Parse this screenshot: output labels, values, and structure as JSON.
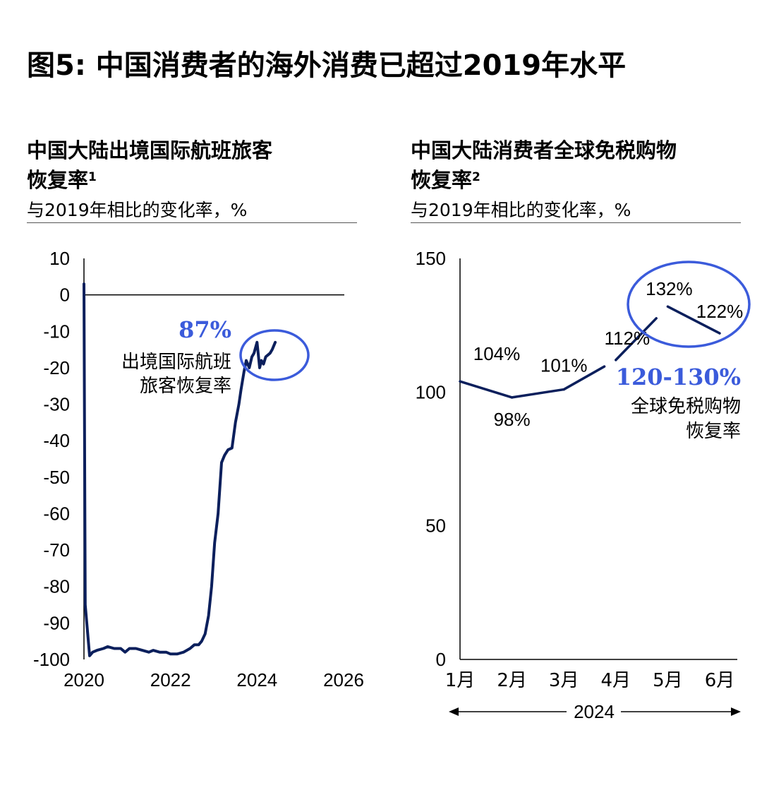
{
  "title": "图5: 中国消费者的海外消费已超过2019年水平",
  "colors": {
    "line": "#0b1f5c",
    "accent": "#3b5bdb",
    "axis": "#000000"
  },
  "chart_data": [
    {
      "type": "line",
      "title": "中国大陆出境国际航班旅客恢复率",
      "title_line1": "中国大陆出境国际航班旅客",
      "title_line2": "恢复率",
      "footnote": "1",
      "subtitle": "与2019年相比的变化率，%",
      "xlim": [
        2020,
        2026
      ],
      "ylim": [
        -100,
        10
      ],
      "x_ticks": [
        "2020",
        "2022",
        "2024",
        "2026"
      ],
      "y_ticks": [
        "10",
        "0",
        "-10",
        "-20",
        "-30",
        "-40",
        "-50",
        "-60",
        "-70",
        "-80",
        "-90",
        "-100"
      ],
      "series": [
        {
          "x": [
            2020.0,
            2020.03,
            2020.08,
            2020.13,
            2020.2,
            2020.3,
            2020.45,
            2020.55,
            2020.7,
            2020.85,
            2020.95,
            2021.05,
            2021.2,
            2021.35,
            2021.5,
            2021.6,
            2021.75,
            2021.9,
            2022.0,
            2022.15,
            2022.3,
            2022.45,
            2022.55,
            2022.65,
            2022.72,
            2022.8,
            2022.88,
            2022.95,
            2023.02,
            2023.1,
            2023.18,
            2023.25,
            2023.33,
            2023.42,
            2023.5,
            2023.58,
            2023.63,
            2023.7,
            2023.75,
            2023.82,
            2023.88,
            2023.93,
            2024.0,
            2024.06,
            2024.1,
            2024.15,
            2024.2,
            2024.25,
            2024.3,
            2024.35,
            2024.42
          ],
          "y": [
            3,
            -85,
            -92,
            -99,
            -98,
            -97.5,
            -97,
            -96.5,
            -97,
            -97,
            -98,
            -97,
            -97,
            -97.5,
            -98,
            -97.5,
            -98,
            -98,
            -98.5,
            -98.5,
            -98,
            -97,
            -96,
            -96,
            -95,
            -93,
            -88,
            -80,
            -68,
            -60,
            -46,
            -44,
            -42.5,
            -42,
            -35,
            -30,
            -26,
            -21,
            -18,
            -20,
            -17,
            -16,
            -13,
            -20,
            -18,
            -19,
            -17,
            -16.5,
            -16,
            -15,
            -13
          ]
        }
      ],
      "annotation": {
        "value": "87%",
        "label_line1": "出境国际航班",
        "label_line2": "旅客恢复率"
      }
    },
    {
      "type": "line",
      "title": "中国大陆消费者全球免税购物恢复率",
      "title_line1": "中国大陆消费者全球免税购物",
      "title_line2": "恢复率",
      "footnote": "2",
      "subtitle": "与2019年相比的变化率，%",
      "ylim": [
        0,
        150
      ],
      "y_ticks": [
        "150",
        "100",
        "50",
        "0"
      ],
      "categories": [
        "1月",
        "2月",
        "3月",
        "4月",
        "5月",
        "6月"
      ],
      "x_group_label": "2024",
      "series": [
        {
          "values": [
            104,
            98,
            101,
            112,
            132,
            122
          ],
          "labels": [
            "104%",
            "98%",
            "101%",
            "112%",
            "132%",
            "122%"
          ]
        }
      ],
      "annotation": {
        "value": "120-130%",
        "label_line1": "全球免税购物",
        "label_line2": "恢复率"
      }
    }
  ]
}
